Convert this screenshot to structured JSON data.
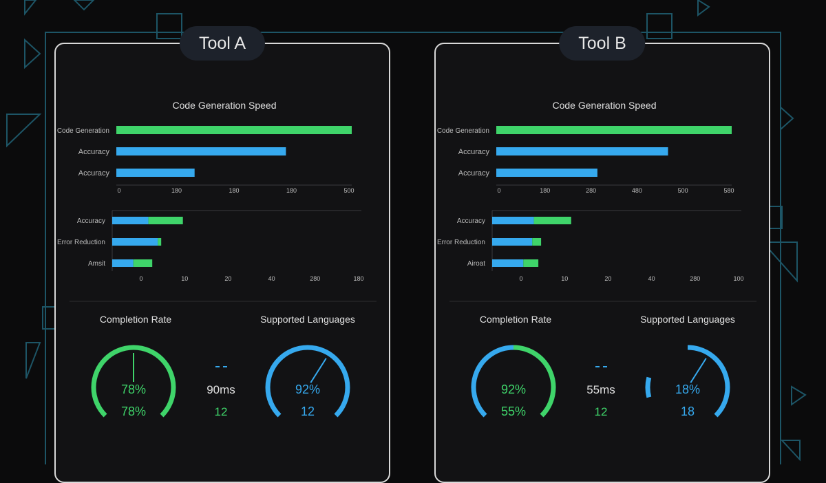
{
  "colors": {
    "green": "#3fd46a",
    "blue": "#36a9ee",
    "text": "#e0e0e0",
    "muted": "#bdbdbd",
    "axis": "#3a3a3e",
    "divider": "#2d2d31"
  },
  "panels": [
    {
      "title": "Tool A",
      "mid_value": "90ms",
      "mid_count": "12",
      "chart_data": [
        {
          "type": "bar",
          "title": "Code Generation Speed",
          "categories": [
            "Code Generation",
            "Accuracy",
            "Accuracy"
          ],
          "values": [
            340,
            245,
            113
          ],
          "colors": [
            "#3fd46a",
            "#36a9ee",
            "#36a9ee"
          ],
          "xticks": [
            "0",
            "180",
            "180",
            "180",
            "500"
          ],
          "xlim": [
            0,
            340
          ]
        },
        {
          "type": "bar",
          "stacked": true,
          "categories": [
            "Accuracy",
            "Error Reduction",
            "Amsit"
          ],
          "series": [
            {
              "values": [
                65,
                82,
                38
              ],
              "color": "#36a9ee"
            },
            {
              "values": [
                62,
                6,
                34
              ],
              "color": "#3fd46a"
            }
          ],
          "xticks": [
            "0",
            "10",
            "20",
            "40",
            "280",
            "180"
          ],
          "xlim": [
            0,
            235
          ]
        }
      ],
      "gauges": [
        {
          "label": "Completion Rate",
          "value_text": "78%",
          "sub_text": "78",
          "sub_suffix": "%",
          "fraction": 0.78,
          "primary": "#3fd46a",
          "secondary": "#3fd46a",
          "value_color": "#3fd46a",
          "needle": 0.5
        },
        {
          "label": "Supported Languages",
          "value_text": "92%",
          "sub_text": "12",
          "sub_suffix": "",
          "fraction": 0.92,
          "primary": "#36a9ee",
          "secondary": "#36a9ee",
          "value_color": "#36a9ee",
          "needle": 0.62
        }
      ]
    },
    {
      "title": "Tool B",
      "mid_value": "55ms",
      "mid_count": "12",
      "chart_data": [
        {
          "type": "bar",
          "title": "Code Generation Speed",
          "categories": [
            "Code Generation",
            "Accuracy",
            "Accuracy"
          ],
          "values": [
            340,
            248,
            146
          ],
          "colors": [
            "#3fd46a",
            "#36a9ee",
            "#36a9ee"
          ],
          "xticks": [
            "0",
            "180",
            "280",
            "480",
            "500",
            "580"
          ],
          "xlim": [
            0,
            340
          ]
        },
        {
          "type": "bar",
          "stacked": true,
          "categories": [
            "Accuracy",
            "Error Reduction",
            "Airoat"
          ],
          "series": [
            {
              "values": [
                75,
                72,
                56
              ],
              "color": "#36a9ee"
            },
            {
              "values": [
                67,
                16,
                27
              ],
              "color": "#3fd46a"
            }
          ],
          "xticks": [
            "0",
            "10",
            "20",
            "40",
            "280",
            "100"
          ],
          "xlim": [
            0,
            235
          ]
        }
      ],
      "gauges": [
        {
          "label": "Completion Rate",
          "value_text": "92%",
          "sub_text": "55",
          "sub_suffix": "%",
          "fraction": 0.92,
          "primary": "#36a9ee",
          "secondary": "#3fd46a",
          "value_color": "#3fd46a",
          "needle": null
        },
        {
          "label": "Supported Languages",
          "value_text": "18%",
          "sub_text": "18",
          "sub_suffix": "",
          "fraction": 0.18,
          "primary": "#36a9ee",
          "secondary": "#36a9ee",
          "value_color": "#36a9ee",
          "needle": 0.62
        }
      ]
    }
  ]
}
